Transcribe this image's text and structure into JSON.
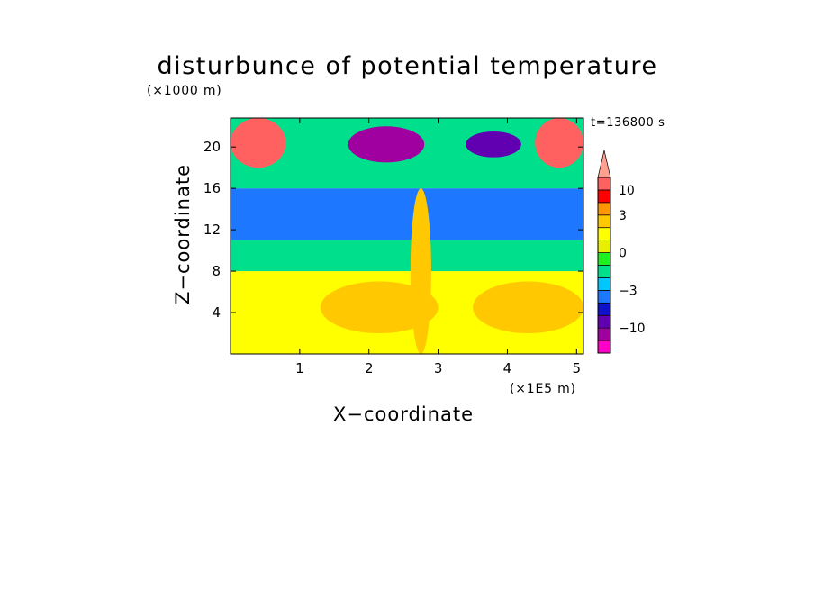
{
  "chart_data": {
    "type": "heatmap",
    "title": "disturbunce of potential temperature",
    "time_label": "t=136800 s",
    "xlabel": "X−coordinate",
    "ylabel": "Z−coordinate",
    "x_unit": "(×1E5 m)",
    "y_unit": "(×1000 m)",
    "xlim": [
      0,
      5.1
    ],
    "ylim": [
      0,
      22.8
    ],
    "x_ticks": [
      "1",
      "2",
      "3",
      "4",
      "5"
    ],
    "y_ticks": [
      "4",
      "8",
      "12",
      "16",
      "20"
    ],
    "colorbar": {
      "levels": [
        -20,
        -15,
        -10,
        -7,
        -5,
        -3,
        -2,
        -1,
        0,
        1,
        2,
        3,
        5,
        10,
        20
      ],
      "labeled_levels": [
        "10",
        "3",
        "0",
        "−3",
        "−10"
      ],
      "colors": [
        "#ff00c8",
        "#a000a0",
        "#6000b0",
        "#1010c8",
        "#1e78ff",
        "#00c8ff",
        "#00e08c",
        "#20f020",
        "#e6f000",
        "#ffff00",
        "#ffc800",
        "#ff9600",
        "#ff0000",
        "#ff6060",
        "#ffa090"
      ],
      "extend": "max"
    },
    "regions": [
      {
        "x_range": [
          0,
          5.1
        ],
        "z_range": [
          0,
          8
        ],
        "value": 1.5
      },
      {
        "x_range": [
          0,
          5.1
        ],
        "z_range": [
          8,
          11
        ],
        "value": -1.5
      },
      {
        "x_range": [
          0,
          5.1
        ],
        "z_range": [
          11,
          16
        ],
        "value": -4
      },
      {
        "x_range": [
          0,
          5.1
        ],
        "z_range": [
          16,
          22.8
        ],
        "value": -1.5
      },
      {
        "x_range": [
          1.3,
          3.0
        ],
        "z_range": [
          2,
          7
        ],
        "value": 2.5
      },
      {
        "x_range": [
          3.5,
          5.1
        ],
        "z_range": [
          2,
          7
        ],
        "value": 2.5
      },
      {
        "x_range": [
          0,
          0.8
        ],
        "z_range": [
          18,
          22.8
        ],
        "value": 12
      },
      {
        "x_range": [
          4.4,
          5.1
        ],
        "z_range": [
          18,
          22.8
        ],
        "value": 12
      },
      {
        "x_range": [
          1.7,
          2.8
        ],
        "z_range": [
          18.5,
          22
        ],
        "value": -12
      },
      {
        "x_range": [
          3.4,
          4.2
        ],
        "z_range": [
          19,
          21.5
        ],
        "value": -10
      },
      {
        "x_range": [
          2.6,
          2.9
        ],
        "z_range": [
          0,
          16
        ],
        "value": 2
      }
    ]
  }
}
